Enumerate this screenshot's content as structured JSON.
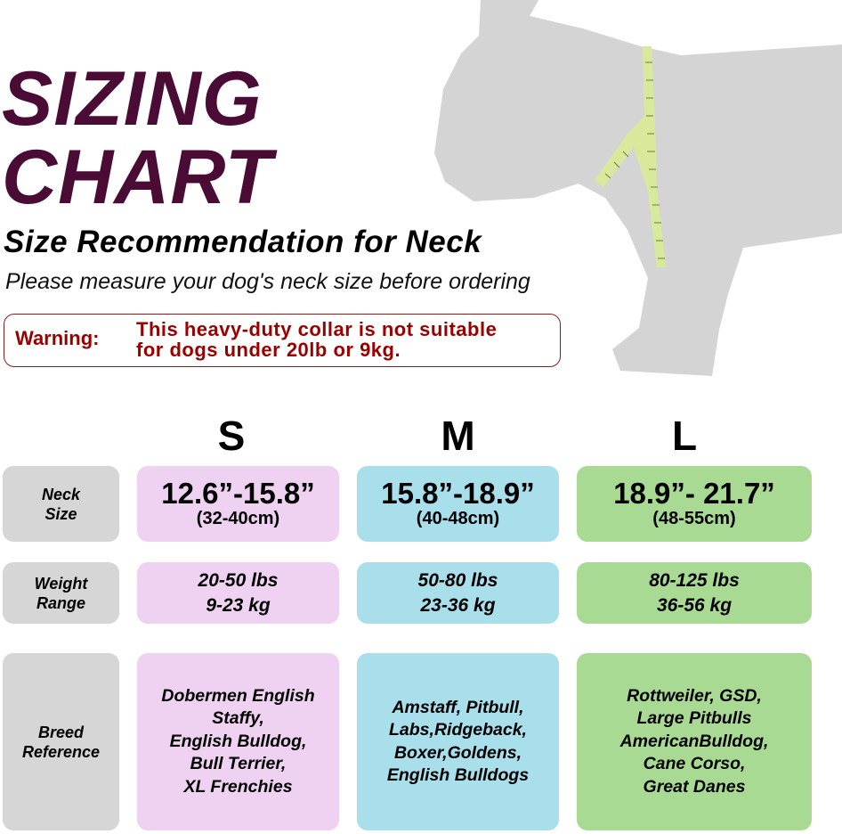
{
  "title": {
    "line1": "SIZING",
    "line2": "CHART"
  },
  "subtitle": "Size Recommendation for Neck",
  "instruction": "Please measure your dog's neck size before ordering",
  "warning": {
    "label": "Warning:",
    "line1": "This heavy-duty collar is not suitable",
    "line2": "for dogs under 20lb or 9kg."
  },
  "sizes": [
    "S",
    "M",
    "L"
  ],
  "row_labels": {
    "neck": [
      "Neck",
      "Size"
    ],
    "weight": [
      "Weight",
      "Range"
    ],
    "breed": [
      "Breed",
      "Reference"
    ]
  },
  "neck": [
    {
      "in": "12.6”-15.8”",
      "cm": "(32-40cm)"
    },
    {
      "in": "15.8”-18.9”",
      "cm": "(40-48cm)"
    },
    {
      "in": "18.9”- 21.7”",
      "cm": "(48-55cm)"
    }
  ],
  "weight": [
    [
      "20-50 lbs",
      "9-23 kg"
    ],
    [
      "50-80 lbs",
      "23-36 kg"
    ],
    [
      "80-125 lbs",
      "36-56 kg"
    ]
  ],
  "breeds": [
    [
      "Dobermen English",
      "Staffy,",
      "English Bulldog,",
      "Bull Terrier,",
      "XL Frenchies"
    ],
    [
      "Amstaff, Pitbull,",
      "Labs,Ridgeback,",
      "Boxer,Goldens,",
      "English Bulldogs"
    ],
    [
      "Rottweiler, GSD,",
      "Large Pitbulls",
      "AmericanBulldog,",
      "Cane Corso,",
      "Great Danes"
    ]
  ],
  "colors": {
    "title": "#4a0b35",
    "warning": "#990000",
    "small": "#efd1f1",
    "medium": "#a8dfeb",
    "large": "#a9da94",
    "label": "#d6d6d6",
    "dog": "#d4d4d4",
    "tape": "#d9e99c"
  }
}
